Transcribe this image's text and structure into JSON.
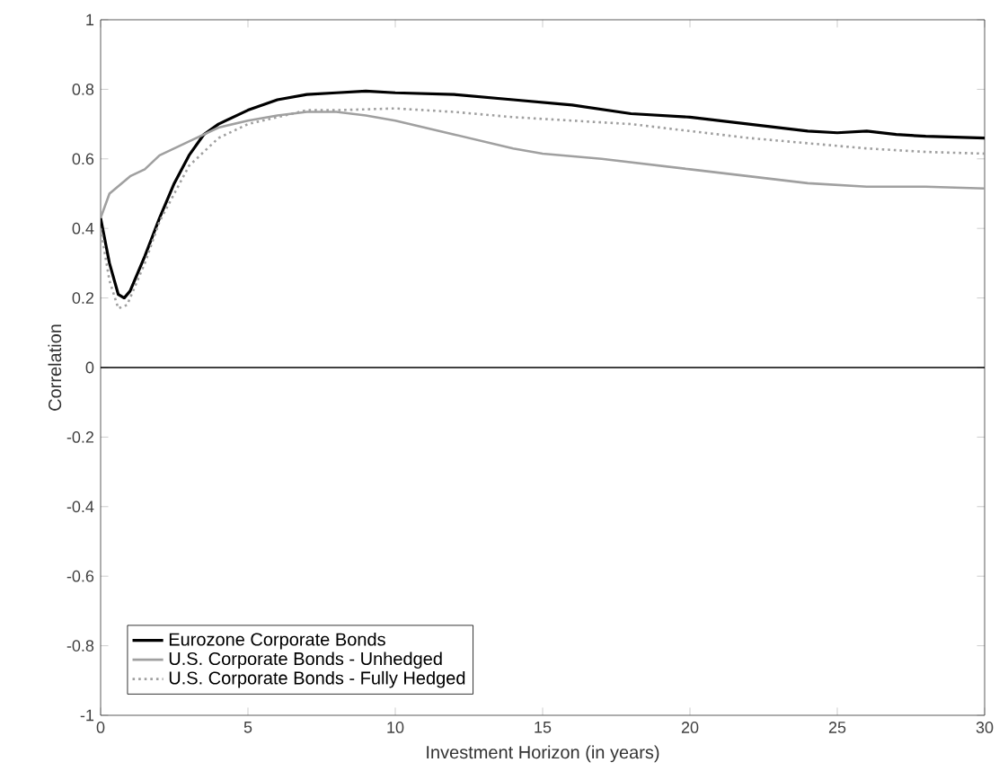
{
  "chart_data": {
    "type": "line",
    "xlabel": "Investment Horizon (in years)",
    "ylabel": "Correlation",
    "xlim": [
      0,
      30
    ],
    "ylim": [
      -1,
      1
    ],
    "xticks": [
      0,
      5,
      10,
      15,
      20,
      25,
      30
    ],
    "yticks": [
      -1,
      -0.8,
      -0.6,
      -0.4,
      -0.2,
      0,
      0.2,
      0.4,
      0.6,
      0.8,
      1
    ],
    "grid": false,
    "legend": "bottom left",
    "marker": "none",
    "ref_lines": [
      {
        "axis": "y",
        "value": 0,
        "color": "#000000"
      }
    ],
    "series": [
      {
        "name": "Eurozone Corporate Bonds",
        "color": "#000000",
        "line_style": "solid",
        "x": [
          0,
          0.3,
          0.6,
          0.8,
          1,
          1.5,
          2,
          2.5,
          3,
          3.5,
          4,
          5,
          6,
          7,
          8,
          9,
          10,
          12,
          14,
          16,
          18,
          20,
          22,
          24,
          25,
          26,
          27,
          28,
          30
        ],
        "values": [
          0.43,
          0.3,
          0.21,
          0.2,
          0.22,
          0.32,
          0.43,
          0.53,
          0.61,
          0.67,
          0.7,
          0.74,
          0.77,
          0.785,
          0.79,
          0.795,
          0.79,
          0.785,
          0.77,
          0.755,
          0.73,
          0.72,
          0.7,
          0.68,
          0.675,
          0.68,
          0.67,
          0.665,
          0.66
        ]
      },
      {
        "name": "U.S. Corporate Bonds - Unhedged",
        "color": "#a0a0a0",
        "line_style": "solid",
        "x": [
          0,
          0.3,
          1,
          1.5,
          2,
          3,
          4,
          5,
          6,
          7,
          8,
          9,
          10,
          11,
          12,
          13,
          14,
          15,
          17,
          20,
          22,
          24,
          26,
          28,
          30
        ],
        "values": [
          0.43,
          0.5,
          0.55,
          0.57,
          0.61,
          0.65,
          0.69,
          0.71,
          0.725,
          0.735,
          0.735,
          0.725,
          0.71,
          0.69,
          0.67,
          0.65,
          0.63,
          0.615,
          0.6,
          0.57,
          0.55,
          0.53,
          0.52,
          0.52,
          0.515
        ]
      },
      {
        "name": "U.S. Corporate Bonds - Fully Hedged",
        "color": "#a0a0a0",
        "line_style": "dotted",
        "x": [
          0,
          0.3,
          0.6,
          0.9,
          1.5,
          2,
          3,
          4,
          5,
          6,
          7,
          8,
          10,
          12,
          14,
          16,
          18,
          20,
          22,
          24,
          26,
          28,
          30
        ],
        "values": [
          0.4,
          0.25,
          0.17,
          0.18,
          0.3,
          0.42,
          0.58,
          0.66,
          0.7,
          0.72,
          0.74,
          0.74,
          0.745,
          0.735,
          0.72,
          0.71,
          0.7,
          0.68,
          0.66,
          0.645,
          0.63,
          0.62,
          0.615
        ]
      }
    ]
  }
}
